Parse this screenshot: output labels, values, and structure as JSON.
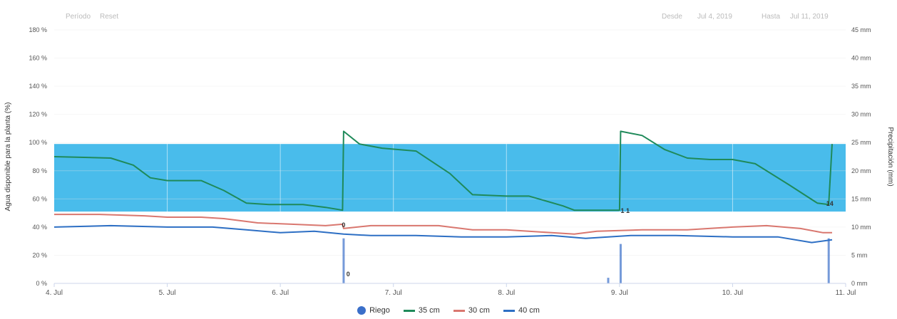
{
  "toolbar": {
    "zoom_label": "Período",
    "reset_label": "Reset",
    "from_label": "Desde",
    "from_value": "Jul 4, 2019",
    "to_label": "Hasta",
    "to_value": "Jul 11, 2019"
  },
  "colors": {
    "band": "#3fb8ea",
    "series_35": "#1f8a5a",
    "series_30": "#d9776f",
    "series_40": "#2d6fc4",
    "riego": "#3a6fc9"
  },
  "chart_data": {
    "type": "line",
    "title": "",
    "xlabel": "",
    "ylabel": "Agua disponible para la planta (%)",
    "ylabel_right": "Precipitación (mm)",
    "x_range_days": [
      "2019-07-04",
      "2019-07-11"
    ],
    "x_tick_labels": [
      "4. Jul",
      "5. Jul",
      "6. Jul",
      "7. Jul",
      "8. Jul",
      "9. Jul",
      "10. Jul",
      "11. Jul"
    ],
    "ylim": [
      0,
      180
    ],
    "y_tick_labels": [
      "0 %",
      "20 %",
      "40 %",
      "60 %",
      "80 %",
      "100 %",
      "120 %",
      "140 %",
      "160 %",
      "180 %"
    ],
    "ylim_right": [
      0,
      45
    ],
    "y_right_tick_labels": [
      "0 mm",
      "5 mm",
      "10 mm",
      "15 mm",
      "20 mm",
      "25 mm",
      "30 mm",
      "35 mm",
      "40 mm",
      "45 mm"
    ],
    "optimal_band": [
      51,
      99
    ],
    "series": [
      {
        "name": "35 cm",
        "key": "series_35",
        "points": [
          [
            0,
            90
          ],
          [
            0.5,
            89
          ],
          [
            0.7,
            84
          ],
          [
            0.85,
            75
          ],
          [
            1.0,
            73
          ],
          [
            1.3,
            73
          ],
          [
            1.5,
            66
          ],
          [
            1.7,
            57
          ],
          [
            1.9,
            56
          ],
          [
            2.2,
            56
          ],
          [
            2.4,
            54
          ],
          [
            2.55,
            52
          ],
          [
            2.56,
            108
          ],
          [
            2.7,
            99
          ],
          [
            2.9,
            96
          ],
          [
            3.2,
            94
          ],
          [
            3.5,
            78
          ],
          [
            3.7,
            63
          ],
          [
            4.0,
            62
          ],
          [
            4.2,
            62
          ],
          [
            4.5,
            55
          ],
          [
            4.6,
            52
          ],
          [
            4.85,
            52
          ],
          [
            5.0,
            52
          ],
          [
            5.01,
            108
          ],
          [
            5.2,
            105
          ],
          [
            5.4,
            95
          ],
          [
            5.6,
            89
          ],
          [
            5.8,
            88
          ],
          [
            6.0,
            88
          ],
          [
            6.2,
            85
          ],
          [
            6.5,
            70
          ],
          [
            6.75,
            57
          ],
          [
            6.85,
            56
          ],
          [
            6.88,
            99
          ]
        ]
      },
      {
        "name": "30 cm",
        "key": "series_30",
        "points": [
          [
            0,
            49
          ],
          [
            0.4,
            49
          ],
          [
            0.8,
            48
          ],
          [
            1.0,
            47
          ],
          [
            1.3,
            47
          ],
          [
            1.5,
            46
          ],
          [
            1.8,
            43
          ],
          [
            2.1,
            42
          ],
          [
            2.4,
            41
          ],
          [
            2.55,
            42
          ],
          [
            2.56,
            39
          ],
          [
            2.8,
            41
          ],
          [
            3.1,
            41
          ],
          [
            3.4,
            41
          ],
          [
            3.7,
            38
          ],
          [
            4.0,
            38
          ],
          [
            4.4,
            36
          ],
          [
            4.6,
            35
          ],
          [
            4.8,
            37
          ],
          [
            5.2,
            38
          ],
          [
            5.6,
            38
          ],
          [
            6.0,
            40
          ],
          [
            6.3,
            41
          ],
          [
            6.6,
            39
          ],
          [
            6.8,
            36
          ],
          [
            6.88,
            36
          ]
        ]
      },
      {
        "name": "40 cm",
        "key": "series_40",
        "points": [
          [
            0,
            40
          ],
          [
            0.5,
            41
          ],
          [
            1.0,
            40
          ],
          [
            1.4,
            40
          ],
          [
            1.7,
            38
          ],
          [
            2.0,
            36
          ],
          [
            2.3,
            37
          ],
          [
            2.56,
            35
          ],
          [
            2.8,
            34
          ],
          [
            3.2,
            34
          ],
          [
            3.6,
            33
          ],
          [
            4.0,
            33
          ],
          [
            4.4,
            34
          ],
          [
            4.7,
            32
          ],
          [
            5.1,
            34
          ],
          [
            5.5,
            34
          ],
          [
            6.0,
            33
          ],
          [
            6.4,
            33
          ],
          [
            6.7,
            29
          ],
          [
            6.88,
            31
          ]
        ]
      }
    ],
    "riego": {
      "name": "Riego",
      "key": "riego",
      "bars": [
        [
          2.56,
          8
        ],
        [
          4.9,
          1
        ],
        [
          5.01,
          7
        ],
        [
          6.85,
          8
        ]
      ]
    },
    "data_labels": [
      {
        "text": "0",
        "x": 2.56,
        "y": 40
      },
      {
        "text": "0",
        "x": 2.6,
        "y": 5
      },
      {
        "text": "1 1",
        "x": 5.05,
        "y": 50
      },
      {
        "text": "14",
        "x": 6.86,
        "y": 55
      }
    ],
    "legend": {
      "placement": "bottom-center"
    }
  }
}
